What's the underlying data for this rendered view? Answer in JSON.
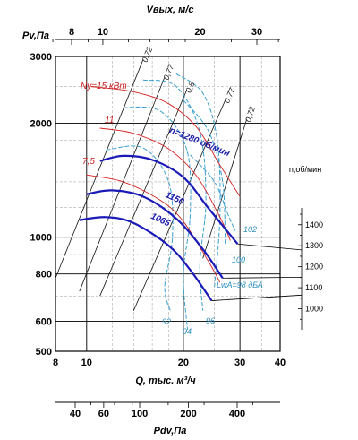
{
  "chart_data": {
    "type": "line",
    "title": "",
    "plot": {
      "xscale": "log",
      "yscale": "log",
      "xlim": [
        8,
        40
      ],
      "ylim": [
        500,
        3000
      ],
      "grid": true
    },
    "axes": {
      "x_bottom": {
        "label": "Q, тыс. м³/ч",
        "ticks": [
          8,
          10,
          20,
          30,
          40
        ],
        "tick_labels": [
          "8",
          "10",
          "20",
          "30",
          "40"
        ]
      },
      "y_left": {
        "label": "Pv,Па",
        "ticks": [
          500,
          600,
          800,
          1000,
          2000,
          3000
        ],
        "tick_labels": [
          "500",
          "600",
          "800",
          "1000",
          "2000",
          "3000"
        ]
      },
      "x_top": {
        "label": "Vвых, м/с",
        "ticks": [
          8,
          10,
          20,
          30
        ],
        "tick_labels": [
          "8",
          "10",
          "20",
          "30"
        ]
      },
      "x_dynamic": {
        "label": "Pdv,Па",
        "ticks": [
          40,
          60,
          100,
          200,
          400
        ],
        "tick_labels": [
          "40",
          "60",
          "100",
          "200",
          "400"
        ]
      },
      "y_right": {
        "label": "n,об/мин",
        "ticks": [
          1000,
          1100,
          1200,
          1300,
          1400
        ],
        "tick_labels": [
          "1000",
          "1100",
          "1200",
          "1300",
          "1400"
        ],
        "range": [
          900,
          1480
        ]
      }
    },
    "speed_curves": [
      {
        "name": "n=1280 об/мин",
        "points": [
          [
            11,
            1590
          ],
          [
            13,
            1640
          ],
          [
            16,
            1600
          ],
          [
            20,
            1440
          ],
          [
            24,
            1190
          ],
          [
            29.5,
            960
          ]
        ]
      },
      {
        "name": "1150",
        "points": [
          [
            10,
            1300
          ],
          [
            12,
            1330
          ],
          [
            15,
            1280
          ],
          [
            19,
            1120
          ],
          [
            23,
            930
          ],
          [
            26.5,
            780
          ]
        ]
      },
      {
        "name": "1065",
        "points": [
          [
            9.5,
            1110
          ],
          [
            11.5,
            1130
          ],
          [
            14,
            1090
          ],
          [
            18,
            950
          ],
          [
            21,
            820
          ],
          [
            24.5,
            680
          ]
        ]
      }
    ],
    "power_lines": [
      {
        "name": "Ny=15 кВт",
        "points": [
          [
            10.3,
            2500
          ],
          [
            14,
            2420
          ],
          [
            18,
            2250
          ],
          [
            22,
            1950
          ],
          [
            26,
            1550
          ],
          [
            30,
            1280
          ]
        ]
      },
      {
        "name": "11",
        "points": [
          [
            11,
            1940
          ],
          [
            14,
            1880
          ],
          [
            18,
            1710
          ],
          [
            22,
            1450
          ],
          [
            26,
            1130
          ],
          [
            28,
            980
          ]
        ]
      },
      {
        "name": "7,5",
        "points": [
          [
            10,
            1460
          ],
          [
            13,
            1400
          ],
          [
            17,
            1250
          ],
          [
            20,
            1100
          ],
          [
            24,
            860
          ],
          [
            26,
            760
          ]
        ]
      }
    ],
    "efficiency_rays": [
      {
        "name": "0,72",
        "points": [
          [
            8,
            780
          ],
          [
            15,
            2950
          ]
        ]
      },
      {
        "name": "0,77",
        "points": [
          [
            9.5,
            720
          ],
          [
            17.5,
            2650
          ]
        ]
      },
      {
        "name": "0,8",
        "points": [
          [
            11,
            700
          ],
          [
            20.5,
            2450
          ]
        ]
      },
      {
        "name": "0,77",
        "points": [
          [
            14,
            640
          ],
          [
            27,
            2300
          ]
        ]
      },
      {
        "name": "0,72",
        "points": [
          [
            23,
            880
          ],
          [
            31.5,
            2050
          ]
        ]
      }
    ],
    "noise_contours": [
      {
        "name": "92",
        "points": [
          [
            11.5,
            1700
          ],
          [
            15,
            1720
          ],
          [
            18,
            1400
          ],
          [
            18.5,
            1000
          ],
          [
            17.5,
            740
          ],
          [
            18.2,
            640
          ]
        ]
      },
      {
        "name": "94",
        "points": [
          [
            13,
            2200
          ],
          [
            17,
            2150
          ],
          [
            20.5,
            1700
          ],
          [
            21,
            1150
          ],
          [
            20,
            800
          ],
          [
            20.6,
            570
          ]
        ]
      },
      {
        "name": "96",
        "points": [
          [
            15,
            2600
          ],
          [
            19,
            2500
          ],
          [
            22.5,
            1900
          ],
          [
            23.5,
            1250
          ],
          [
            22.5,
            850
          ],
          [
            23,
            640
          ]
        ]
      },
      {
        "name": "98 дБА",
        "points": [
          [
            19,
            2700
          ],
          [
            23,
            2400
          ],
          [
            25.5,
            1800
          ],
          [
            26,
            1150
          ],
          [
            25,
            740
          ]
        ]
      },
      {
        "name": "100",
        "points": [
          [
            20,
            2300
          ],
          [
            24,
            1900
          ],
          [
            26.5,
            1400
          ],
          [
            27,
            960
          ]
        ]
      },
      {
        "name": "102",
        "points": [
          [
            21,
            1650
          ],
          [
            25,
            1400
          ],
          [
            27.5,
            1150
          ],
          [
            29,
            1040
          ]
        ]
      }
    ],
    "leader_lines": [
      {
        "from": [
          29.5,
          960
        ],
        "speed": 1280
      },
      {
        "from": [
          26.5,
          780
        ],
        "speed": 1150
      },
      {
        "from": [
          24.5,
          680
        ],
        "speed": 1065
      }
    ],
    "annotations": {
      "lwa_prefix": "LwA="
    }
  }
}
